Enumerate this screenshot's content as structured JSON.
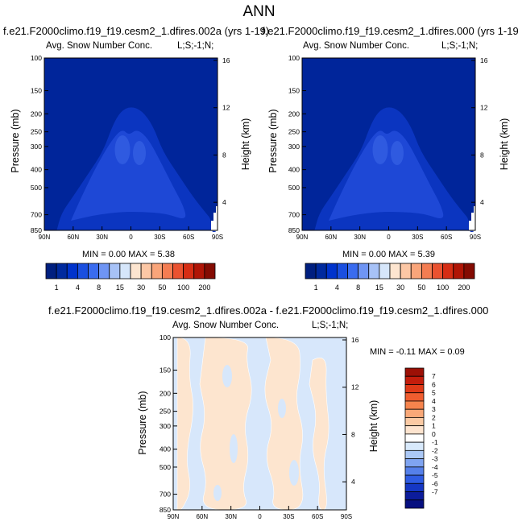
{
  "title": "ANN",
  "panels": [
    {
      "case": "f.e21.F2000climo.f19_f19.cesm2_1.dfires.002a (yrs 1-19)",
      "variable": "Avg. Snow Number Conc.",
      "region": "L;S;-1;N;",
      "minmax": "MIN =  0.00   MAX =   5.38"
    },
    {
      "case": "f.e21.F2000climo.f19_f19.cesm2_1.dfires.000 (yrs 1-19)",
      "variable": "Avg. Snow Number Conc.",
      "region": "L;S;-1;N;",
      "minmax": "MIN =  0.00   MAX =   5.39"
    },
    {
      "case": "f.e21.F2000climo.f19_f19.cesm2_1.dfires.002a - f.e21.F2000climo.f19_f19.cesm2_1.dfires.000",
      "variable": "Avg. Snow Number Conc.",
      "region": "L;S;-1;N;",
      "minmax": "MIN = -0.11   MAX =  0.09"
    }
  ],
  "chart_data": [
    {
      "type": "contour",
      "title": "Avg. Snow Number Conc.",
      "xlabel": "",
      "ylabel": "Pressure (mb)",
      "y2label": "Height (km)",
      "x_ticks": [
        "90N",
        "60N",
        "30N",
        "0",
        "30S",
        "60S",
        "90S"
      ],
      "x_values": [
        90,
        60,
        30,
        0,
        -30,
        -60,
        -90
      ],
      "y_ticks": [
        "100",
        "150",
        "200",
        "250",
        "300",
        "400",
        "500",
        "700",
        "850"
      ],
      "y_values": [
        100,
        150,
        200,
        250,
        300,
        400,
        500,
        700,
        850
      ],
      "y2_ticks": [
        "4",
        "8",
        "12",
        "16"
      ],
      "y2_values": [
        4,
        8,
        12,
        16
      ],
      "min": 0.0,
      "max": 5.38
    },
    {
      "type": "contour",
      "title": "Avg. Snow Number Conc.",
      "xlabel": "",
      "ylabel": "Pressure (mb)",
      "y2label": "Height (km)",
      "x_ticks": [
        "90N",
        "60N",
        "30N",
        "0",
        "30S",
        "60S",
        "90S"
      ],
      "x_values": [
        90,
        60,
        30,
        0,
        -30,
        -60,
        -90
      ],
      "y_ticks": [
        "100",
        "150",
        "200",
        "250",
        "300",
        "400",
        "500",
        "700",
        "850"
      ],
      "y_values": [
        100,
        150,
        200,
        250,
        300,
        400,
        500,
        700,
        850
      ],
      "y2_ticks": [
        "4",
        "8",
        "12",
        "16"
      ],
      "y2_values": [
        4,
        8,
        12,
        16
      ],
      "min": 0.0,
      "max": 5.39
    },
    {
      "type": "contour",
      "title": "Avg. Snow Number Conc.",
      "xlabel": "",
      "ylabel": "Pressure (mb)",
      "y2label": "Height (km)",
      "x_ticks": [
        "90N",
        "60N",
        "30N",
        "0",
        "30S",
        "60S",
        "90S"
      ],
      "x_values": [
        90,
        60,
        30,
        0,
        -30,
        -60,
        -90
      ],
      "y_ticks": [
        "100",
        "150",
        "200",
        "250",
        "300",
        "400",
        "500",
        "700",
        "850"
      ],
      "y_values": [
        100,
        150,
        200,
        250,
        300,
        400,
        500,
        700,
        850
      ],
      "y2_ticks": [
        "4",
        "8",
        "12",
        "16"
      ],
      "y2_values": [
        4,
        8,
        12,
        16
      ],
      "min": -0.11,
      "max": 0.09
    }
  ],
  "colorbar_main": {
    "labels": [
      "1",
      "4",
      "8",
      "15",
      "30",
      "50",
      "100",
      "200"
    ],
    "colors": [
      "#001f7f",
      "#002a9e",
      "#0033cc",
      "#1a4fe0",
      "#3a6cf0",
      "#6f95f4",
      "#a7c2f7",
      "#d6e6fa",
      "#fde5d0",
      "#fcc7a5",
      "#f9a57a",
      "#f47d52",
      "#ea5230",
      "#d62d14",
      "#b01506",
      "#840b02"
    ]
  },
  "colorbar_diff": {
    "labels": [
      "7",
      "6",
      "5",
      "4",
      "3",
      "2",
      "1",
      "0",
      "-1",
      "-2",
      "-3",
      "-4",
      "-5",
      "-6",
      "-7"
    ],
    "colors": [
      "#9c1006",
      "#c41d0c",
      "#e03a18",
      "#f05d2f",
      "#f6844d",
      "#f9a878",
      "#fbcaa4",
      "#fde4cf",
      "#ffffff",
      "#d8e9fb",
      "#abc8f6",
      "#7fa4f1",
      "#5580ea",
      "#2f5ce3",
      "#1537c4",
      "#0c1c9c",
      "#060f80"
    ]
  },
  "contour_colors": [
    "#00259a",
    "#0b35c0",
    "#1e48d6",
    "#2f5ae0",
    "#ffffff"
  ],
  "diff_colors": {
    "neg": "#d7e7fb",
    "pos": "#fde5cf",
    "border": "#ffffff"
  }
}
